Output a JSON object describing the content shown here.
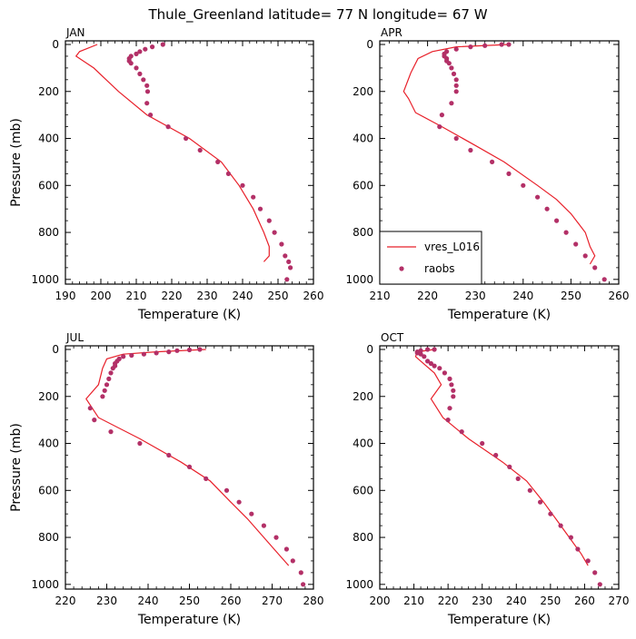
{
  "figure": {
    "title": "Thule_Greenland  latitude= 77 N longitude= 67 W"
  },
  "chart_data": [
    {
      "type": "line",
      "panel": "JAN",
      "title": "JAN",
      "xlabel": "Temperature (K)",
      "ylabel": "Pressure (mb)",
      "xlim": [
        190,
        260
      ],
      "ylim": [
        1020,
        0
      ],
      "xticks": [
        190,
        200,
        210,
        220,
        230,
        240,
        250,
        260
      ],
      "yticks": [
        0,
        200,
        400,
        600,
        800,
        1000
      ],
      "legend": null,
      "series": [
        {
          "name": "vres_L016",
          "style": "line",
          "color": "#e8202a",
          "points": [
            [
              199,
              0
            ],
            [
              194,
              30
            ],
            [
              193,
              50
            ],
            [
              198,
              100
            ],
            [
              205,
              200
            ],
            [
              213,
              300
            ],
            [
              225,
              400
            ],
            [
              234,
              500
            ],
            [
              239,
              600
            ],
            [
              243,
              700
            ],
            [
              246,
              800
            ],
            [
              247.5,
              860
            ],
            [
              247.5,
              900
            ],
            [
              246,
              925
            ]
          ]
        },
        {
          "name": "raobs",
          "style": "markers",
          "color": "#b33067",
          "points": [
            [
              217.5,
              0
            ],
            [
              214.5,
              10
            ],
            [
              212.5,
              20
            ],
            [
              211,
              30
            ],
            [
              210,
              40
            ],
            [
              208.5,
              50
            ],
            [
              208,
              60
            ],
            [
              208,
              70
            ],
            [
              208.5,
              80
            ],
            [
              210,
              100
            ],
            [
              211,
              125
            ],
            [
              212,
              150
            ],
            [
              213,
              175
            ],
            [
              213.2,
              200
            ],
            [
              213,
              250
            ],
            [
              214,
              300
            ],
            [
              219,
              350
            ],
            [
              224,
              400
            ],
            [
              228,
              450
            ],
            [
              233,
              500
            ],
            [
              236,
              550
            ],
            [
              240,
              600
            ],
            [
              243,
              650
            ],
            [
              245,
              700
            ],
            [
              247.5,
              750
            ],
            [
              249,
              800
            ],
            [
              251,
              850
            ],
            [
              252,
              900
            ],
            [
              253,
              925
            ],
            [
              253.5,
              950
            ],
            [
              252.5,
              1000
            ]
          ]
        }
      ]
    },
    {
      "type": "line",
      "panel": "APR",
      "title": "APR",
      "xlabel": "Temperature (K)",
      "ylabel": "",
      "xlim": [
        210,
        260
      ],
      "ylim": [
        1020,
        0
      ],
      "xticks": [
        210,
        220,
        230,
        240,
        250,
        260
      ],
      "yticks": [
        0,
        200,
        400,
        600,
        800,
        1000
      ],
      "legend": {
        "position": "bottom-left",
        "entries": [
          "vres_L016",
          "raobs"
        ]
      },
      "series": [
        {
          "name": "vres_L016",
          "style": "line",
          "color": "#e8202a",
          "points": [
            [
              237,
              0
            ],
            [
              226,
              10
            ],
            [
              221,
              30
            ],
            [
              218,
              60
            ],
            [
              216.5,
              120
            ],
            [
              215,
              200
            ],
            [
              216,
              230
            ],
            [
              217.5,
              290
            ],
            [
              223,
              350
            ],
            [
              230,
              430
            ],
            [
              236,
              500
            ],
            [
              243,
              600
            ],
            [
              247,
              660
            ],
            [
              250,
              720
            ],
            [
              253,
              800
            ],
            [
              254,
              860
            ],
            [
              255,
              900
            ],
            [
              254,
              935
            ]
          ]
        },
        {
          "name": "raobs",
          "style": "markers",
          "color": "#b33067",
          "points": [
            [
              237,
              0
            ],
            [
              235.5,
              0
            ],
            [
              232,
              5
            ],
            [
              229,
              10
            ],
            [
              226,
              20
            ],
            [
              224,
              30
            ],
            [
              223.5,
              40
            ],
            [
              223.5,
              50
            ],
            [
              224,
              60
            ],
            [
              224,
              70
            ],
            [
              224.5,
              80
            ],
            [
              225,
              100
            ],
            [
              225.5,
              125
            ],
            [
              226,
              150
            ],
            [
              226,
              175
            ],
            [
              226,
              200
            ],
            [
              225,
              250
            ],
            [
              223,
              300
            ],
            [
              222.5,
              350
            ],
            [
              226,
              400
            ],
            [
              229,
              450
            ],
            [
              233.5,
              500
            ],
            [
              237,
              550
            ],
            [
              240,
              600
            ],
            [
              243,
              650
            ],
            [
              245,
              700
            ],
            [
              247,
              750
            ],
            [
              249,
              800
            ],
            [
              251,
              850
            ],
            [
              253,
              900
            ],
            [
              255,
              950
            ],
            [
              257,
              1000
            ]
          ]
        }
      ]
    },
    {
      "type": "line",
      "panel": "JUL",
      "title": "JUL",
      "xlabel": "Temperature (K)",
      "ylabel": "Pressure (mb)",
      "xlim": [
        220,
        280
      ],
      "ylim": [
        1020,
        0
      ],
      "xticks": [
        220,
        230,
        240,
        250,
        260,
        270,
        280
      ],
      "yticks": [
        0,
        200,
        400,
        600,
        800,
        1000
      ],
      "legend": null,
      "series": [
        {
          "name": "vres_L016",
          "style": "line",
          "color": "#e8202a",
          "points": [
            [
              254,
              0
            ],
            [
              242,
              10
            ],
            [
              234,
              20
            ],
            [
              230,
              40
            ],
            [
              229,
              80
            ],
            [
              228,
              150
            ],
            [
              225,
              210
            ],
            [
              228,
              290
            ],
            [
              238,
              380
            ],
            [
              248,
              480
            ],
            [
              255,
              560
            ],
            [
              260,
              650
            ],
            [
              264,
              720
            ],
            [
              268,
              800
            ],
            [
              271,
              860
            ],
            [
              274,
              920
            ]
          ]
        },
        {
          "name": "raobs",
          "style": "markers",
          "color": "#b33067",
          "points": [
            [
              252.5,
              0
            ],
            [
              250,
              2
            ],
            [
              247,
              5
            ],
            [
              245,
              10
            ],
            [
              242,
              15
            ],
            [
              239,
              20
            ],
            [
              236,
              25
            ],
            [
              234,
              30
            ],
            [
              233,
              40
            ],
            [
              232.5,
              50
            ],
            [
              232,
              60
            ],
            [
              232,
              70
            ],
            [
              231.5,
              80
            ],
            [
              231,
              100
            ],
            [
              230.5,
              125
            ],
            [
              230,
              150
            ],
            [
              229.5,
              175
            ],
            [
              229,
              200
            ],
            [
              226,
              250
            ],
            [
              227,
              300
            ],
            [
              231,
              350
            ],
            [
              238,
              400
            ],
            [
              245,
              450
            ],
            [
              250,
              500
            ],
            [
              254,
              550
            ],
            [
              259,
              600
            ],
            [
              262,
              650
            ],
            [
              265,
              700
            ],
            [
              268,
              750
            ],
            [
              271,
              800
            ],
            [
              273.5,
              850
            ],
            [
              275,
              900
            ],
            [
              277,
              950
            ],
            [
              277.5,
              1000
            ]
          ]
        }
      ]
    },
    {
      "type": "line",
      "panel": "OCT",
      "title": "OCT",
      "xlabel": "Temperature (K)",
      "ylabel": "",
      "xlim": [
        200,
        270
      ],
      "ylim": [
        1020,
        0
      ],
      "xticks": [
        200,
        210,
        220,
        230,
        240,
        250,
        260,
        270
      ],
      "yticks": [
        0,
        200,
        400,
        600,
        800,
        1000
      ],
      "legend": null,
      "series": [
        {
          "name": "vres_L016",
          "style": "line",
          "color": "#e8202a",
          "points": [
            [
              216,
              0
            ],
            [
              211,
              10
            ],
            [
              210.5,
              30
            ],
            [
              212,
              50
            ],
            [
              216,
              100
            ],
            [
              218,
              150
            ],
            [
              215,
              210
            ],
            [
              218.5,
              290
            ],
            [
              226,
              380
            ],
            [
              236,
              480
            ],
            [
              243,
              560
            ],
            [
              248,
              650
            ],
            [
              252,
              730
            ],
            [
              256,
              810
            ],
            [
              259,
              870
            ],
            [
              261,
              920
            ]
          ]
        },
        {
          "name": "raobs",
          "style": "markers",
          "color": "#b33067",
          "points": [
            [
              216,
              0
            ],
            [
              214,
              0
            ],
            [
              212,
              5
            ],
            [
              211,
              10
            ],
            [
              211,
              15
            ],
            [
              212,
              20
            ],
            [
              213,
              30
            ],
            [
              214,
              50
            ],
            [
              215,
              60
            ],
            [
              216,
              70
            ],
            [
              217.5,
              80
            ],
            [
              219,
              100
            ],
            [
              220.5,
              125
            ],
            [
              221,
              150
            ],
            [
              221.5,
              175
            ],
            [
              221.5,
              200
            ],
            [
              220.5,
              250
            ],
            [
              220,
              300
            ],
            [
              224,
              350
            ],
            [
              230,
              400
            ],
            [
              234,
              450
            ],
            [
              238,
              500
            ],
            [
              240.5,
              550
            ],
            [
              244,
              600
            ],
            [
              247,
              650
            ],
            [
              250,
              700
            ],
            [
              253,
              750
            ],
            [
              256,
              800
            ],
            [
              258,
              850
            ],
            [
              261,
              900
            ],
            [
              263,
              950
            ],
            [
              264.5,
              1000
            ]
          ]
        }
      ]
    }
  ]
}
